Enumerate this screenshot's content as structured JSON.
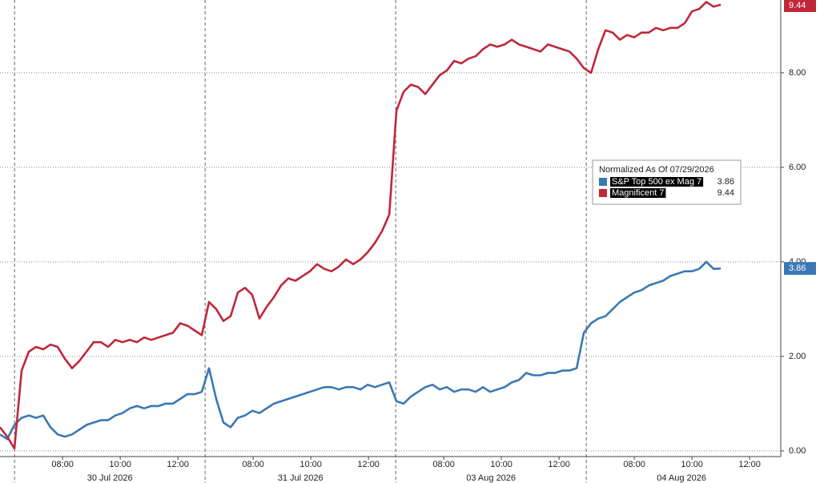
{
  "chart_data": {
    "type": "line",
    "legend_title": "Normalized As Of 07/29/2026",
    "x": [
      0,
      0.25,
      0.5,
      0.75,
      1,
      1.25,
      1.5,
      1.75,
      2,
      2.25,
      2.5,
      2.75,
      3,
      3.25,
      3.5,
      3.75,
      4,
      4.25,
      4.5,
      4.75,
      5,
      5.25,
      5.5,
      5.75,
      6,
      6.25,
      6.5,
      6.75,
      7,
      7.25,
      7.5,
      7.75,
      8,
      8.25,
      8.5,
      8.75,
      9,
      9.25,
      9.5,
      9.75,
      10,
      10.25,
      10.5,
      10.75,
      11,
      11.25,
      11.5,
      11.75,
      12,
      12.25,
      12.5,
      12.75,
      13,
      13.25,
      13.5,
      13.75,
      14,
      14.25,
      14.5,
      14.75,
      15,
      15.25,
      15.5,
      15.75,
      16,
      16.25,
      16.5,
      16.75,
      17,
      17.25,
      17.5,
      17.75,
      18,
      18.25,
      18.5,
      18.75,
      19,
      19.25,
      19.5,
      19.75,
      20,
      20.25,
      20.5,
      20.75,
      21,
      21.25,
      21.5,
      21.75,
      22,
      22.25,
      22.5,
      22.75,
      23,
      23.25,
      23.5,
      23.75,
      24,
      24.25,
      24.5,
      24.75,
      25
    ],
    "series": [
      {
        "name": "S&P Top 500 ex Mag 7",
        "color": "#3a78b5",
        "values": [
          0.35,
          0.25,
          0.55,
          0.7,
          0.75,
          0.7,
          0.75,
          0.5,
          0.35,
          0.3,
          0.35,
          0.45,
          0.55,
          0.6,
          0.65,
          0.65,
          0.75,
          0.8,
          0.9,
          0.95,
          0.9,
          0.95,
          0.95,
          1.0,
          1.0,
          1.1,
          1.2,
          1.2,
          1.25,
          1.75,
          1.1,
          0.6,
          0.5,
          0.7,
          0.75,
          0.85,
          0.8,
          0.9,
          1.0,
          1.05,
          1.1,
          1.15,
          1.2,
          1.25,
          1.3,
          1.35,
          1.35,
          1.3,
          1.35,
          1.35,
          1.3,
          1.4,
          1.35,
          1.4,
          1.45,
          1.05,
          1.0,
          1.15,
          1.25,
          1.35,
          1.4,
          1.3,
          1.35,
          1.25,
          1.3,
          1.3,
          1.25,
          1.35,
          1.25,
          1.3,
          1.35,
          1.45,
          1.5,
          1.65,
          1.6,
          1.6,
          1.65,
          1.65,
          1.7,
          1.7,
          1.75,
          2.5,
          2.7,
          2.8,
          2.85,
          3.0,
          3.15,
          3.25,
          3.35,
          3.4,
          3.5,
          3.55,
          3.6,
          3.7,
          3.75,
          3.8,
          3.8,
          3.85,
          4.0,
          3.85,
          3.86
        ]
      },
      {
        "name": "Magnificent 7",
        "color": "#c0273a",
        "values": [
          0.5,
          0.3,
          0.05,
          1.7,
          2.1,
          2.2,
          2.15,
          2.25,
          2.2,
          1.95,
          1.75,
          1.9,
          2.1,
          2.3,
          2.3,
          2.2,
          2.35,
          2.3,
          2.35,
          2.3,
          2.4,
          2.35,
          2.4,
          2.45,
          2.5,
          2.7,
          2.65,
          2.55,
          2.45,
          3.15,
          3.0,
          2.75,
          2.85,
          3.35,
          3.45,
          3.3,
          2.8,
          3.05,
          3.25,
          3.5,
          3.65,
          3.6,
          3.7,
          3.8,
          3.95,
          3.85,
          3.8,
          3.9,
          4.05,
          3.95,
          4.05,
          4.2,
          4.4,
          4.65,
          5.0,
          7.2,
          7.6,
          7.75,
          7.7,
          7.55,
          7.75,
          7.95,
          8.05,
          8.25,
          8.2,
          8.3,
          8.35,
          8.5,
          8.6,
          8.55,
          8.6,
          8.7,
          8.6,
          8.55,
          8.5,
          8.45,
          8.6,
          8.55,
          8.5,
          8.45,
          8.3,
          8.1,
          8.0,
          8.5,
          8.9,
          8.85,
          8.7,
          8.8,
          8.75,
          8.85,
          8.85,
          8.95,
          8.9,
          8.95,
          8.95,
          9.05,
          9.3,
          9.35,
          9.5,
          9.4,
          9.44
        ]
      }
    ],
    "xlim": [
      0,
      27.08
    ],
    "xticks": [
      {
        "value": 2.17,
        "label": "08:00"
      },
      {
        "value": 4.17,
        "label": "10:00"
      },
      {
        "value": 6.17,
        "label": "12:00"
      },
      {
        "value": 8.78,
        "label": "08:00"
      },
      {
        "value": 10.78,
        "label": "10:00"
      },
      {
        "value": 12.78,
        "label": "12:00"
      },
      {
        "value": 15.39,
        "label": "08:00"
      },
      {
        "value": 17.39,
        "label": "10:00"
      },
      {
        "value": 19.39,
        "label": "12:00"
      },
      {
        "value": 22.0,
        "label": "08:00"
      },
      {
        "value": 24.0,
        "label": "10:00"
      },
      {
        "value": 26.0,
        "label": "12:00"
      }
    ],
    "date_ticks": [
      {
        "value": 3.81,
        "label": "30 Jul 2026"
      },
      {
        "value": 10.42,
        "label": "31 Jul 2026"
      },
      {
        "value": 17.03,
        "label": "03 Aug 2026"
      },
      {
        "value": 23.64,
        "label": "04 Aug 2026"
      }
    ],
    "ylim": [
      -0.12,
      9.54
    ],
    "yticks": [
      {
        "value": 0,
        "label": "0.00"
      },
      {
        "value": 2,
        "label": "2.00"
      },
      {
        "value": 4,
        "label": "4.00"
      },
      {
        "value": 6,
        "label": "6.00"
      },
      {
        "value": 8,
        "label": "8.00"
      }
    ],
    "grid": true
  }
}
